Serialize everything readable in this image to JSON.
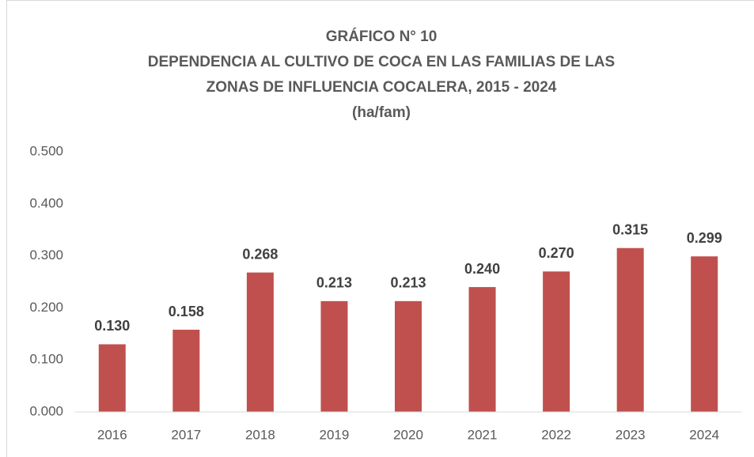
{
  "chart_data": {
    "type": "bar",
    "title": [
      "GRÁFICO  N° 10",
      "DEPENDENCIA AL CULTIVO DE COCA EN LAS FAMILIAS DE LAS",
      "ZONAS DE INFLUENCIA COCALERA, 2015 - 2024",
      "(ha/fam)"
    ],
    "categories": [
      "2016",
      "2017",
      "2018",
      "2019",
      "2020",
      "2021",
      "2022",
      "2023",
      "2024"
    ],
    "values": [
      0.13,
      0.158,
      0.268,
      0.213,
      0.213,
      0.24,
      0.27,
      0.315,
      0.299
    ],
    "value_labels": [
      "0.130",
      "0.158",
      "0.268",
      "0.213",
      "0.213",
      "0.240",
      "0.270",
      "0.315",
      "0.299"
    ],
    "color": "#c0504d",
    "ylim": [
      0,
      0.5
    ],
    "yticks": [
      {
        "value": 0,
        "label": "0.000"
      },
      {
        "value": 0.1,
        "label": "0.100"
      },
      {
        "value": 0.2,
        "label": "0.200"
      },
      {
        "value": 0.3,
        "label": "0.300"
      },
      {
        "value": 0.4,
        "label": "0.400"
      },
      {
        "value": 0.5,
        "label": "0.500"
      }
    ],
    "grid": false
  }
}
